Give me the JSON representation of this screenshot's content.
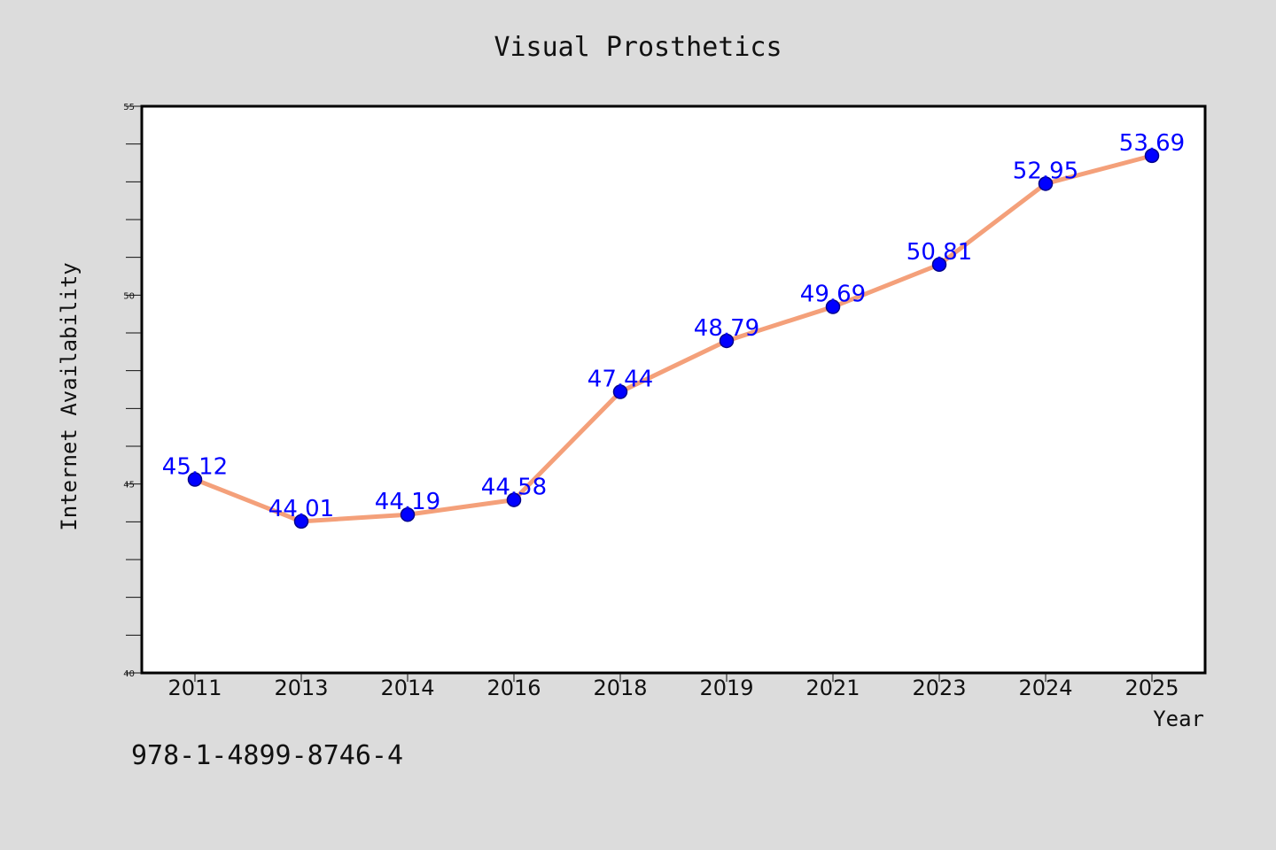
{
  "chart_data": {
    "type": "line",
    "title": "Visual Prosthetics",
    "xlabel": "Year",
    "ylabel": "Internet Availability",
    "categories": [
      "2011",
      "2013",
      "2014",
      "2016",
      "2018",
      "2019",
      "2021",
      "2023",
      "2024",
      "2025"
    ],
    "series": [
      {
        "values": [
          45.12,
          44.01,
          44.19,
          44.58,
          47.44,
          48.79,
          49.69,
          50.81,
          52.95,
          53.69
        ],
        "data_labels": [
          "45.12",
          "44.01",
          "44.19",
          "44.58",
          "47.44",
          "48.79",
          "49.69",
          "50.81",
          "52.95",
          "53.69"
        ]
      }
    ],
    "ylim": [
      40,
      55
    ],
    "y_ticks": [
      "40",
      "45",
      "50",
      "55"
    ],
    "y_minor_step": 1,
    "grid": false,
    "legend": "none",
    "colors": {
      "line": "#f4a07a",
      "marker": "#0000ff",
      "marker_edge": "#00008b",
      "label": "#0000ff",
      "background": "#dcdcdc",
      "plot_background": "#ffffff"
    }
  },
  "footer": {
    "code": "978-1-4899-8746-4"
  }
}
